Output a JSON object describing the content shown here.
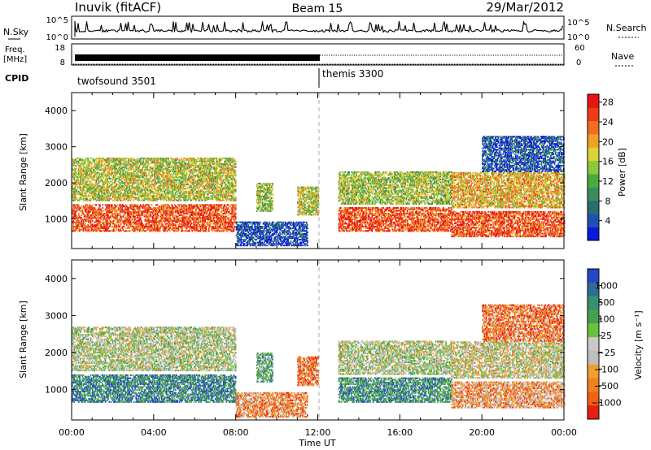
{
  "header": {
    "station": "Inuvik (fitACF)",
    "beam": "Beam 15",
    "date": "29/Mar/2012"
  },
  "side_labels": {
    "nsky": "N.Sky",
    "freq_line1": "Freq.",
    "freq_line2": "[MHz]",
    "cpid": "CPID",
    "nsearch": "N.Search",
    "nave": "Nave"
  },
  "strip_ticks": {
    "nsky_top": "10^5",
    "nsky_bottom": "10^0",
    "nsearch_top": "10^5",
    "nsearch_bottom": "10^0",
    "freq_top": "18",
    "freq_bottom": "8",
    "nave_top": "60",
    "nave_bottom": "0"
  },
  "cpid_modes": [
    {
      "name": "twofsound 3501",
      "start_hour": 0
    },
    {
      "name": "themis 3300",
      "start_hour": 12
    }
  ],
  "chart_data": [
    {
      "type": "heatmap",
      "panel": "power",
      "ylabel": "Slant Range [km]",
      "x_range_hours": [
        0,
        24
      ],
      "ylim": [
        180,
        4500
      ],
      "y_ticks": [
        "1000",
        "2000",
        "3000",
        "4000"
      ],
      "colorbar_label": "Power [dB]",
      "colorbar_ticks": [
        "4",
        "8",
        "12",
        "16",
        "20",
        "24",
        "28"
      ],
      "colorscale": [
        "#0a1adc",
        "#1e50b4",
        "#286e6e",
        "#3c8c5a",
        "#4caa3c",
        "#8cc83c",
        "#dcd232",
        "#f0a028",
        "#f06e1e",
        "#ee3c14",
        "#e61414"
      ],
      "echo_bands": [
        {
          "start": 0.0,
          "end": 8.0,
          "r_lo": 650,
          "r_hi": 1400,
          "level": 0.85
        },
        {
          "start": 0.0,
          "end": 8.0,
          "r_lo": 1500,
          "r_hi": 2700,
          "level": 0.55
        },
        {
          "start": 8.0,
          "end": 11.5,
          "r_lo": 250,
          "r_hi": 900,
          "level": 0.12
        },
        {
          "start": 9.0,
          "end": 9.8,
          "r_lo": 1200,
          "r_hi": 2000,
          "level": 0.5
        },
        {
          "start": 11.0,
          "end": 12.0,
          "r_lo": 1100,
          "r_hi": 1900,
          "level": 0.55
        },
        {
          "start": 13.0,
          "end": 18.5,
          "r_lo": 650,
          "r_hi": 1300,
          "level": 0.85
        },
        {
          "start": 13.0,
          "end": 18.5,
          "r_lo": 1400,
          "r_hi": 2300,
          "level": 0.5
        },
        {
          "start": 18.5,
          "end": 24.0,
          "r_lo": 500,
          "r_hi": 1200,
          "level": 0.85
        },
        {
          "start": 18.5,
          "end": 24.0,
          "r_lo": 1300,
          "r_hi": 2300,
          "level": 0.65
        },
        {
          "start": 20.0,
          "end": 24.0,
          "r_lo": 2300,
          "r_hi": 3300,
          "level": 0.15
        }
      ]
    },
    {
      "type": "heatmap",
      "panel": "velocity",
      "ylabel": "Slant Range [km]",
      "xlabel": "Time UT",
      "x_range_hours": [
        0,
        24
      ],
      "x_ticks": [
        "00:00",
        "04:00",
        "08:00",
        "12:00",
        "16:00",
        "20:00",
        "00:00"
      ],
      "ylim": [
        180,
        4500
      ],
      "y_ticks": [
        "1000",
        "2000",
        "3000",
        "4000"
      ],
      "colorbar_label": "Velocity [m s⁻¹]",
      "colorbar_ticks": [
        "1000",
        "500",
        "100",
        "25",
        "−25",
        "−100",
        "−500",
        "−1000"
      ],
      "colorscale": [
        "#2846c8",
        "#2e6e96",
        "#36906e",
        "#46a050",
        "#6cc03c",
        "#c8c8c8",
        "#bebebe",
        "#f0a030",
        "#f08020",
        "#f06018",
        "#e82010"
      ],
      "echo_bands": [
        {
          "start": 0.0,
          "end": 8.0,
          "r_lo": 650,
          "r_hi": 1400,
          "level": 0.2
        },
        {
          "start": 0.0,
          "end": 8.0,
          "r_lo": 1500,
          "r_hi": 2700,
          "level": 0.5
        },
        {
          "start": 8.0,
          "end": 11.5,
          "r_lo": 250,
          "r_hi": 900,
          "level": 0.75
        },
        {
          "start": 9.0,
          "end": 9.8,
          "r_lo": 1200,
          "r_hi": 2000,
          "level": 0.35
        },
        {
          "start": 11.0,
          "end": 12.0,
          "r_lo": 1100,
          "r_hi": 1900,
          "level": 0.8
        },
        {
          "start": 13.0,
          "end": 18.5,
          "r_lo": 650,
          "r_hi": 1300,
          "level": 0.25
        },
        {
          "start": 13.0,
          "end": 18.5,
          "r_lo": 1400,
          "r_hi": 2300,
          "level": 0.5
        },
        {
          "start": 18.5,
          "end": 24.0,
          "r_lo": 500,
          "r_hi": 1200,
          "level": 0.72
        },
        {
          "start": 18.5,
          "end": 24.0,
          "r_lo": 1300,
          "r_hi": 2300,
          "level": 0.55
        },
        {
          "start": 20.0,
          "end": 24.0,
          "r_lo": 2300,
          "r_hi": 3300,
          "level": 0.8
        }
      ]
    }
  ]
}
